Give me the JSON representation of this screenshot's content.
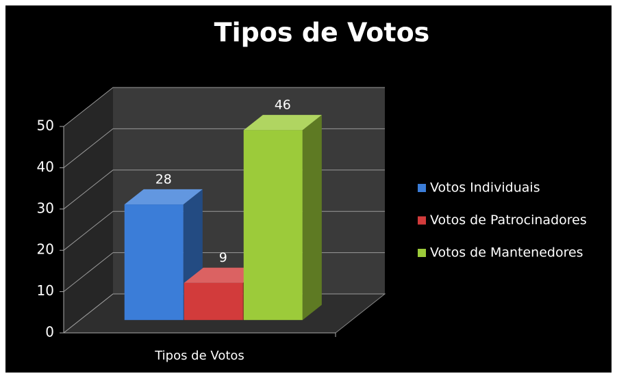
{
  "chart_data": {
    "type": "bar3d",
    "title": "Tipos de Votos",
    "categories": [
      "Tipos de Votos"
    ],
    "series": [
      {
        "name": "Votos Individuais",
        "color": "#3b7dd8",
        "values": [
          28
        ]
      },
      {
        "name": "Votos de Patrocinadores",
        "color": "#d23b3b",
        "values": [
          9
        ]
      },
      {
        "name": "Votos de Mantenedores",
        "color": "#9ccb3a",
        "values": [
          46
        ]
      }
    ],
    "ylim": [
      0,
      50
    ],
    "yticks": [
      0,
      10,
      20,
      30,
      40,
      50
    ],
    "grid": true,
    "legend": "right",
    "data_labels": true
  }
}
